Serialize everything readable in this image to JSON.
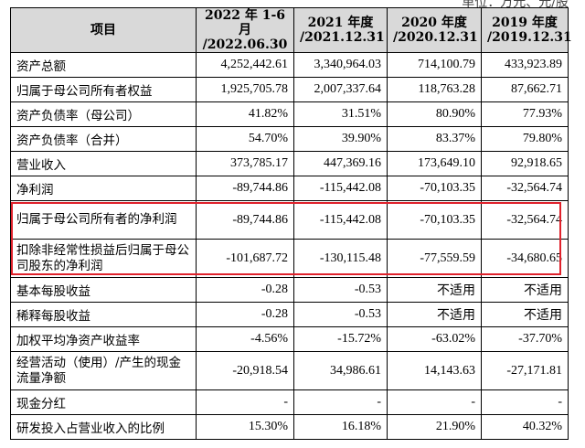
{
  "unit_note": "单位：万元、元/股",
  "columns": [
    {
      "line1": "项目",
      "line2": ""
    },
    {
      "line1": "2022 年 1-6 月",
      "line2": "/2022.06.30"
    },
    {
      "line1": "2021 年度",
      "line2": "/2021.12.31"
    },
    {
      "line1": "2020 年度",
      "line2": "/2020.12.31"
    },
    {
      "line1": "2019 年度",
      "line2": "/2019.12.31"
    }
  ],
  "rows": [
    {
      "label": "资产总额",
      "v": [
        "4,252,442.61",
        "3,340,964.03",
        "714,100.79",
        "433,923.89"
      ]
    },
    {
      "label": "归属于母公司所有者权益",
      "v": [
        "1,925,705.78",
        "2,007,337.64",
        "118,763.28",
        "87,662.71"
      ]
    },
    {
      "label": "资产负债率（母公司）",
      "v": [
        "41.82%",
        "31.51%",
        "80.90%",
        "77.93%"
      ]
    },
    {
      "label": "资产负债率（合并）",
      "v": [
        "54.70%",
        "39.90%",
        "83.37%",
        "79.80%"
      ]
    },
    {
      "label": "营业收入",
      "v": [
        "373,785.17",
        "447,369.16",
        "173,649.10",
        "92,918.65"
      ]
    },
    {
      "label": "净利润",
      "v": [
        "-89,744.86",
        "-115,442.08",
        "-70,103.35",
        "-32,564.74"
      ]
    },
    {
      "label": "归属于母公司所有者的净利润",
      "v": [
        "-89,744.86",
        "-115,442.08",
        "-70,103.35",
        "-32,564.74"
      ]
    },
    {
      "label": "扣除非经常性损益后归属于母公司股东的净利润",
      "v": [
        "-101,687.72",
        "-130,115.48",
        "-77,559.59",
        "-34,680.65"
      ]
    },
    {
      "label": "基本每股收益",
      "v": [
        "-0.28",
        "-0.53",
        "不适用",
        "不适用"
      ]
    },
    {
      "label": "稀释每股收益",
      "v": [
        "-0.28",
        "-0.53",
        "不适用",
        "不适用"
      ]
    },
    {
      "label": "加权平均净资产收益率",
      "v": [
        "-4.56%",
        "-15.72%",
        "-63.02%",
        "-37.70%"
      ]
    },
    {
      "label": "经营活动（使用）/产生的现金流量净额",
      "v": [
        "-20,918.54",
        "34,986.61",
        "14,143.63",
        "-27,171.81"
      ]
    },
    {
      "label": "现金分红",
      "v": [
        "-",
        "-",
        "-",
        "-"
      ]
    },
    {
      "label": "研发投入占营业收入的比例",
      "v": [
        "15.30%",
        "16.18%",
        "21.90%",
        "40.32%"
      ]
    }
  ],
  "highlight_color": "#e0212b"
}
